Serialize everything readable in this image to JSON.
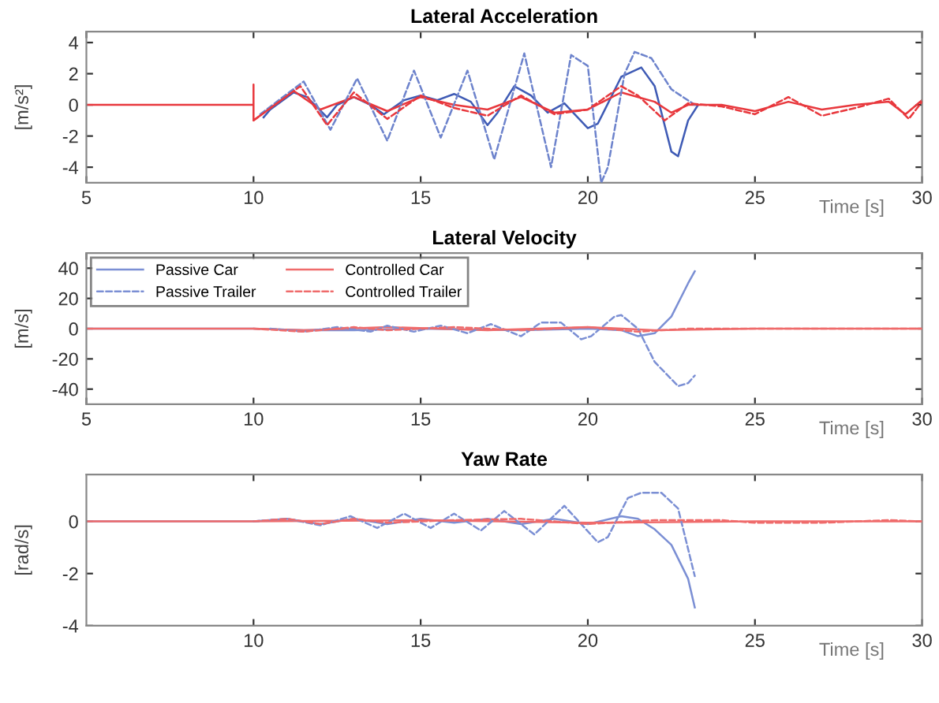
{
  "chart_data": [
    {
      "type": "line",
      "title": "Lateral Acceleration",
      "xlabel": "Time [s]",
      "ylabel": "[m/s²]",
      "xlim": [
        5,
        30
      ],
      "ylim": [
        -5,
        4.7
      ],
      "xticks": [
        5,
        10,
        15,
        20,
        25,
        30
      ],
      "yticks": [
        -4,
        -2,
        0,
        2,
        4
      ],
      "grid": false,
      "legend": false,
      "series": [
        {
          "color": "#3f5bb5",
          "line_style": "solid",
          "x": [
            10.3,
            10.5,
            11.2,
            11.6,
            12.2,
            12.5,
            13,
            13.5,
            13.9,
            14.5,
            15,
            15.5,
            16,
            16.5,
            17,
            17.3,
            17.8,
            18.3,
            18.8,
            19.3,
            20,
            20.3,
            21,
            21.6,
            22,
            22.5,
            22.7,
            23,
            23.3
          ],
          "values": [
            -0.8,
            -0.3,
            0.8,
            0.5,
            -0.8,
            0,
            0.5,
            0,
            -0.6,
            0.3,
            0.6,
            0.3,
            0.7,
            0.2,
            -1.3,
            -0.5,
            1.2,
            0.6,
            -0.5,
            0.1,
            -1.5,
            -1.2,
            1.8,
            2.4,
            1.2,
            -3.0,
            -3.3,
            -1,
            0
          ]
        },
        {
          "color": "#6d83cc",
          "line_style": "dashed",
          "x": [
            10.2,
            11.5,
            12.3,
            13.1,
            14,
            14.8,
            15.6,
            16.4,
            17.2,
            18.1,
            18.9,
            19.5,
            20,
            20.4,
            20.6,
            21.1,
            21.4,
            21.9,
            22.5,
            23.2
          ],
          "values": [
            -0.6,
            1.5,
            -1.6,
            1.7,
            -2.3,
            2.2,
            -2.1,
            2.2,
            -3.5,
            3.3,
            -4,
            3.2,
            2.5,
            -5,
            -4,
            2.0,
            3.4,
            3.0,
            1,
            0
          ]
        },
        {
          "color": "#e8383d",
          "line_style": "solid",
          "x": [
            5,
            10,
            10,
            10,
            11.2,
            12,
            13,
            14,
            15,
            16,
            17,
            18,
            19,
            20,
            21,
            22,
            22.5,
            23,
            24,
            25,
            26,
            27,
            28,
            29,
            29.5,
            30
          ],
          "values": [
            0,
            0,
            1.3,
            -1,
            0.9,
            -0.3,
            0.5,
            -0.4,
            0.5,
            0,
            -0.3,
            0.5,
            -0.5,
            -0.3,
            0.8,
            0.2,
            -0.5,
            0,
            0,
            -0.4,
            0.2,
            -0.3,
            0,
            0.2,
            -0.6,
            0.3
          ]
        },
        {
          "color": "#e8383d",
          "line_style": "dashed",
          "x": [
            10,
            11.4,
            12.2,
            13,
            14,
            15,
            16,
            17,
            18,
            19,
            20,
            21,
            21.5,
            22.3,
            23,
            24,
            25,
            26,
            27,
            28,
            29,
            29.6,
            30
          ],
          "values": [
            -1,
            1.2,
            -1.3,
            0.8,
            -0.9,
            0.6,
            -0.2,
            -0.7,
            0.6,
            -0.6,
            -0.3,
            1.2,
            0.6,
            -1.0,
            0.1,
            -0.1,
            -0.6,
            0.5,
            -0.7,
            -0.2,
            0.4,
            -0.9,
            0.2
          ]
        }
      ]
    },
    {
      "type": "line",
      "title": "Lateral Velocity",
      "xlabel": "Time [s]",
      "ylabel": "[m/s]",
      "xlim": [
        5,
        30
      ],
      "ylim": [
        -50,
        50
      ],
      "xticks": [
        5,
        10,
        15,
        20,
        25,
        30
      ],
      "yticks": [
        -40,
        -20,
        0,
        20,
        40
      ],
      "grid": false,
      "legend": "top left",
      "series": [
        {
          "name": "Passive Car",
          "color": "#7b8fd4",
          "line_style": "solid",
          "x": [
            5,
            10,
            11.5,
            13,
            15,
            18,
            20,
            21,
            21.5,
            22,
            22.5,
            23,
            23.2
          ],
          "values": [
            0,
            0,
            -1,
            -1,
            0,
            -1,
            0,
            -1,
            -5,
            -3,
            8,
            30,
            38
          ]
        },
        {
          "name": "Passive Trailer",
          "color": "#7b8fd4",
          "line_style": "dashed",
          "x": [
            10.5,
            11.5,
            12.5,
            13.5,
            14,
            14.8,
            15.6,
            16.4,
            17.1,
            18,
            18.6,
            19.2,
            19.8,
            20.1,
            20.8,
            21,
            21.5,
            22,
            22.7,
            23,
            23.2
          ],
          "values": [
            0,
            -2,
            1,
            -2,
            2,
            -2,
            2,
            -3,
            3,
            -5,
            4,
            4,
            -7,
            -5,
            8,
            9,
            0,
            -22,
            -38,
            -36,
            -31
          ]
        },
        {
          "name": "Controlled Car",
          "color": "#ef6b6b",
          "line_style": "solid",
          "x": [
            5,
            10,
            11.5,
            14,
            17,
            20,
            22,
            25,
            30
          ],
          "values": [
            0,
            0,
            -1,
            1,
            -1,
            1,
            -1,
            0,
            0
          ]
        },
        {
          "name": "Controlled Trailer",
          "color": "#ef6b6b",
          "line_style": "dashed",
          "x": [
            10,
            11.5,
            13,
            14,
            16,
            18,
            20,
            21.5,
            23,
            25,
            27,
            30
          ],
          "values": [
            0,
            -2,
            1,
            -1,
            1,
            -1,
            1,
            -2,
            0,
            0,
            0,
            0
          ]
        }
      ]
    },
    {
      "type": "line",
      "title": "Yaw Rate",
      "xlabel": "Time [s]",
      "ylabel": "[rad/s]",
      "xlim": [
        5,
        30
      ],
      "ylim": [
        -4,
        1.8
      ],
      "xticks": [
        10,
        15,
        20,
        25,
        30
      ],
      "yticks": [
        -4,
        -2,
        0
      ],
      "grid": false,
      "legend": false,
      "series": [
        {
          "color": "#7b8fd4",
          "line_style": "solid",
          "x": [
            5,
            10,
            11,
            12,
            13,
            14,
            15,
            16,
            17,
            18,
            19,
            20,
            21,
            21.5,
            22,
            22.5,
            23,
            23.2
          ],
          "values": [
            0,
            0,
            0.1,
            -0.1,
            0.1,
            -0.1,
            0.1,
            -0.05,
            0.1,
            -0.1,
            0.1,
            -0.1,
            0.2,
            0.1,
            -0.3,
            -0.9,
            -2.2,
            -3.3
          ]
        },
        {
          "color": "#7b8fd4",
          "line_style": "dashed",
          "x": [
            10,
            11,
            12,
            12.9,
            13.7,
            14.5,
            15.3,
            16,
            16.8,
            17.5,
            18.4,
            19.3,
            20.3,
            20.6,
            21.2,
            21.6,
            22.2,
            22.7,
            23.2
          ],
          "values": [
            0,
            0.1,
            -0.15,
            0.2,
            -0.25,
            0.3,
            -0.25,
            0.3,
            -0.35,
            0.4,
            -0.5,
            0.6,
            -0.8,
            -0.6,
            0.9,
            1.1,
            1.1,
            0.5,
            -2.1
          ]
        },
        {
          "color": "#ef6b6b",
          "line_style": "solid",
          "x": [
            5,
            10,
            15,
            20,
            25,
            30
          ],
          "values": [
            0,
            0,
            0.05,
            -0.05,
            0,
            0
          ]
        },
        {
          "color": "#ef6b6b",
          "line_style": "dashed",
          "x": [
            10,
            11,
            12,
            13,
            14,
            16,
            18,
            20,
            22,
            24,
            25,
            27,
            29,
            30
          ],
          "values": [
            0,
            0.1,
            -0.1,
            0.1,
            -0.05,
            0.05,
            0.1,
            -0.1,
            0.05,
            0.05,
            -0.05,
            -0.05,
            0.05,
            0
          ]
        }
      ]
    }
  ]
}
